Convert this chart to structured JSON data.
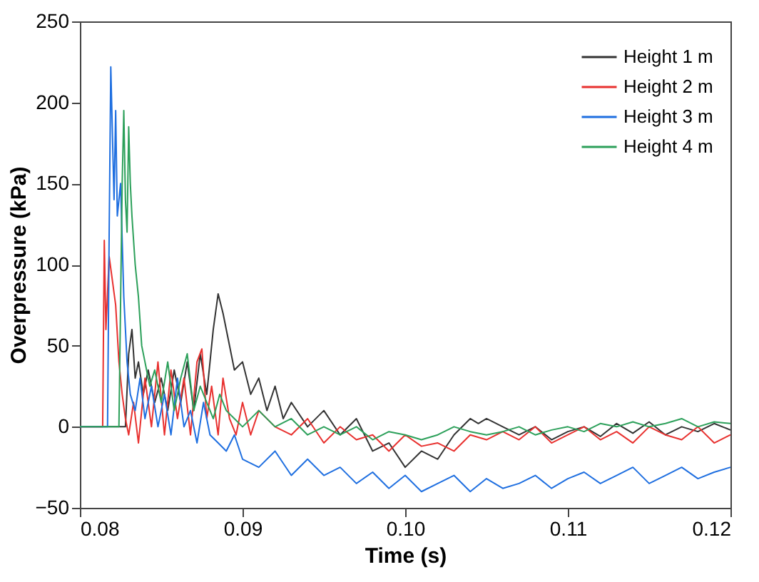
{
  "chart_data": {
    "type": "line",
    "xlabel": "Time (s)",
    "ylabel": "Overpressure (kPa)",
    "xlim": [
      0.08,
      0.12
    ],
    "xticks": [
      0.08,
      0.09,
      {
        "value": 0.1,
        "label": "0.10"
      },
      0.11,
      0.12
    ],
    "ylim": [
      -50,
      250
    ],
    "yticks": [
      -50,
      0,
      50,
      100,
      150,
      200,
      250
    ],
    "grid": false,
    "legend": "top right",
    "line_style": "solid",
    "marker": "none",
    "series": [
      {
        "name": "Height 1 m",
        "color": "#333333",
        "x": [
          0.08,
          0.0828,
          0.083,
          0.0832,
          0.0834,
          0.0836,
          0.0839,
          0.0842,
          0.0846,
          0.085,
          0.0854,
          0.0858,
          0.0862,
          0.0866,
          0.087,
          0.0874,
          0.0878,
          0.0882,
          0.0885,
          0.0888,
          0.0891,
          0.0895,
          0.09,
          0.0905,
          0.091,
          0.0915,
          0.092,
          0.0925,
          0.093,
          0.094,
          0.095,
          0.096,
          0.097,
          0.098,
          0.099,
          0.1,
          0.101,
          0.102,
          0.103,
          0.104,
          0.1045,
          0.105,
          0.106,
          0.107,
          0.108,
          0.109,
          0.11,
          0.111,
          0.112,
          0.113,
          0.114,
          0.115,
          0.116,
          0.117,
          0.118,
          0.119,
          0.12
        ],
        "values": [
          0,
          0,
          45,
          60,
          30,
          40,
          20,
          35,
          15,
          30,
          10,
          35,
          15,
          40,
          10,
          45,
          20,
          60,
          82,
          70,
          55,
          35,
          40,
          20,
          30,
          10,
          25,
          5,
          15,
          0,
          10,
          -5,
          5,
          -15,
          -10,
          -25,
          -15,
          -20,
          -5,
          5,
          2,
          5,
          0,
          -5,
          0,
          -8,
          -3,
          0,
          -6,
          2,
          -4,
          3,
          -5,
          0,
          -3,
          2,
          -2
        ]
      },
      {
        "name": "Height 2 m",
        "color": "#e8312f",
        "x": [
          0.08,
          0.0814,
          0.0815,
          0.0816,
          0.0818,
          0.082,
          0.0822,
          0.0824,
          0.0826,
          0.0828,
          0.083,
          0.0833,
          0.0836,
          0.084,
          0.0844,
          0.0848,
          0.0852,
          0.0856,
          0.086,
          0.0864,
          0.0868,
          0.0872,
          0.0875,
          0.0878,
          0.0881,
          0.0885,
          0.0888,
          0.0892,
          0.0896,
          0.09,
          0.0905,
          0.091,
          0.092,
          0.093,
          0.094,
          0.095,
          0.096,
          0.097,
          0.098,
          0.099,
          0.1,
          0.101,
          0.102,
          0.103,
          0.104,
          0.105,
          0.106,
          0.107,
          0.108,
          0.109,
          0.11,
          0.111,
          0.112,
          0.113,
          0.114,
          0.115,
          0.116,
          0.117,
          0.118,
          0.119,
          0.12
        ],
        "values": [
          0,
          0,
          115,
          60,
          105,
          90,
          75,
          40,
          20,
          5,
          -5,
          15,
          -10,
          30,
          0,
          40,
          -5,
          35,
          5,
          30,
          -5,
          40,
          48,
          5,
          25,
          -5,
          30,
          5,
          -5,
          15,
          -5,
          10,
          0,
          -5,
          5,
          -10,
          0,
          -8,
          -5,
          -15,
          -5,
          -12,
          -10,
          -15,
          -5,
          -8,
          -3,
          -8,
          0,
          -10,
          -5,
          0,
          -8,
          -3,
          -10,
          0,
          -5,
          -8,
          0,
          -10,
          -5
        ]
      },
      {
        "name": "Height 3 m",
        "color": "#1f6fe0",
        "x": [
          0.08,
          0.0817,
          0.0818,
          0.0819,
          0.082,
          0.0821,
          0.0822,
          0.0823,
          0.0825,
          0.0827,
          0.0829,
          0.0831,
          0.0834,
          0.0837,
          0.084,
          0.0844,
          0.0848,
          0.0852,
          0.0856,
          0.086,
          0.0864,
          0.0868,
          0.0872,
          0.0876,
          0.088,
          0.0885,
          0.089,
          0.0895,
          0.09,
          0.091,
          0.092,
          0.093,
          0.094,
          0.095,
          0.096,
          0.097,
          0.098,
          0.099,
          0.1,
          0.101,
          0.102,
          0.103,
          0.104,
          0.105,
          0.106,
          0.107,
          0.108,
          0.109,
          0.11,
          0.111,
          0.112,
          0.113,
          0.114,
          0.115,
          0.116,
          0.117,
          0.118,
          0.119,
          0.12
        ],
        "values": [
          0,
          0,
          120,
          222,
          180,
          140,
          195,
          130,
          150,
          80,
          40,
          20,
          10,
          30,
          5,
          25,
          0,
          20,
          -5,
          30,
          0,
          10,
          -10,
          15,
          -5,
          -10,
          -15,
          -5,
          -20,
          -25,
          -15,
          -30,
          -20,
          -30,
          -25,
          -35,
          -28,
          -38,
          -30,
          -40,
          -35,
          -30,
          -40,
          -32,
          -38,
          -35,
          -30,
          -38,
          -32,
          -28,
          -35,
          -30,
          -25,
          -35,
          -30,
          -25,
          -32,
          -28,
          -25
        ]
      },
      {
        "name": "Height 4 m",
        "color": "#2ca05a",
        "x": [
          0.08,
          0.0824,
          0.0826,
          0.0827,
          0.0828,
          0.0829,
          0.083,
          0.0831,
          0.0832,
          0.0834,
          0.0836,
          0.0838,
          0.084,
          0.0843,
          0.0846,
          0.085,
          0.0854,
          0.0858,
          0.0862,
          0.0866,
          0.087,
          0.0874,
          0.0878,
          0.0882,
          0.0886,
          0.089,
          0.0895,
          0.09,
          0.091,
          0.092,
          0.093,
          0.094,
          0.095,
          0.096,
          0.097,
          0.098,
          0.099,
          0.1,
          0.101,
          0.102,
          0.103,
          0.104,
          0.105,
          0.106,
          0.107,
          0.108,
          0.109,
          0.11,
          0.111,
          0.112,
          0.113,
          0.114,
          0.115,
          0.116,
          0.117,
          0.118,
          0.119,
          0.12
        ],
        "values": [
          0,
          0,
          150,
          195,
          140,
          120,
          185,
          150,
          130,
          100,
          80,
          50,
          40,
          25,
          35,
          15,
          40,
          10,
          30,
          45,
          10,
          25,
          15,
          5,
          20,
          10,
          5,
          0,
          10,
          0,
          5,
          -5,
          0,
          -5,
          0,
          -8,
          -3,
          -5,
          -8,
          -5,
          0,
          -3,
          -5,
          -3,
          0,
          -5,
          -2,
          0,
          -3,
          2,
          0,
          3,
          0,
          2,
          5,
          0,
          3,
          2
        ]
      }
    ]
  }
}
